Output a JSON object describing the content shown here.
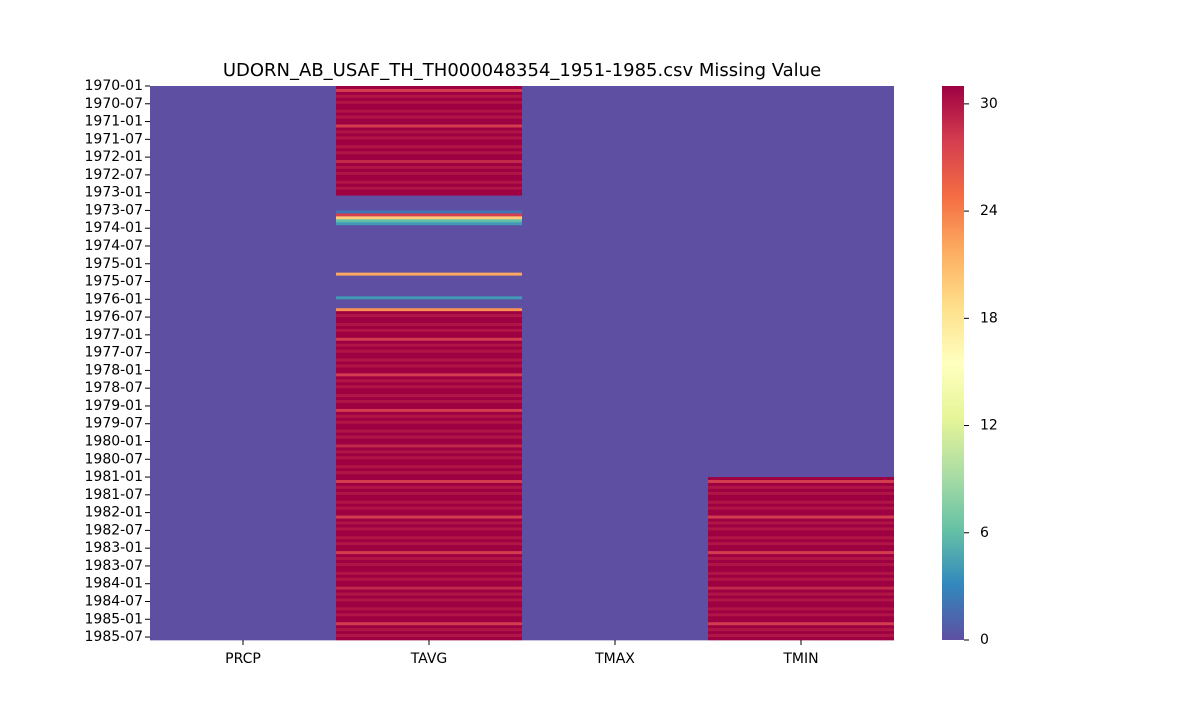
{
  "chart_data": {
    "type": "heatmap",
    "title": "UDORN_AB_USAF_TH_TH000048354_1951-1985.csv Missing Value",
    "xlabel": "",
    "ylabel": "",
    "columns": [
      "PRCP",
      "TAVG",
      "TMAX",
      "TMIN"
    ],
    "row_start": "1970-01",
    "row_end": "1985-07",
    "row_tick_labels": [
      "1970-01",
      "1970-07",
      "1971-01",
      "1971-07",
      "1972-01",
      "1972-07",
      "1973-01",
      "1973-07",
      "1974-01",
      "1974-07",
      "1975-01",
      "1975-07",
      "1976-01",
      "1976-07",
      "1977-01",
      "1977-07",
      "1978-01",
      "1978-07",
      "1979-01",
      "1979-07",
      "1980-01",
      "1980-07",
      "1981-01",
      "1981-07",
      "1982-01",
      "1982-07",
      "1983-01",
      "1983-07",
      "1984-01",
      "1984-07",
      "1985-01",
      "1985-07"
    ],
    "colorbar": {
      "colormap": "Spectral_r",
      "min": 0,
      "max": 31,
      "ticks": [
        0,
        6,
        12,
        18,
        24,
        30
      ],
      "colors": [
        "#5e4fa2",
        "#3288bd",
        "#66c2a5",
        "#abdda4",
        "#e6f598",
        "#ffffbf",
        "#fee08b",
        "#fdae61",
        "#f46d43",
        "#d53e4f",
        "#9e0142"
      ]
    },
    "series": [
      {
        "column": "PRCP",
        "segments": [
          {
            "from": "1970-01",
            "to": "1985-07",
            "value": 0
          }
        ]
      },
      {
        "column": "TAVG",
        "segments": [
          {
            "from": "1970-01",
            "to": "1973-01",
            "value": 31,
            "note": "months with 30 days shown at value 30"
          },
          {
            "from": "1973-02",
            "to": "1973-06",
            "value": 0
          },
          {
            "from": "1973-07",
            "to": "1973-07",
            "value": 2
          },
          {
            "from": "1973-08",
            "to": "1973-08",
            "value": 28
          },
          {
            "from": "1973-09",
            "to": "1973-09",
            "value": 20
          },
          {
            "from": "1973-10",
            "to": "1973-10",
            "value": 6
          },
          {
            "from": "1973-11",
            "to": "1973-11",
            "value": 4
          },
          {
            "from": "1973-12",
            "to": "1975-03",
            "value": 0
          },
          {
            "from": "1975-04",
            "to": "1975-04",
            "value": 22
          },
          {
            "from": "1975-05",
            "to": "1975-11",
            "value": 0
          },
          {
            "from": "1975-12",
            "to": "1975-12",
            "value": 4
          },
          {
            "from": "1976-01",
            "to": "1976-03",
            "value": 0
          },
          {
            "from": "1976-04",
            "to": "1976-04",
            "value": 23
          },
          {
            "from": "1976-05",
            "to": "1985-07",
            "value": 31,
            "note": "months with 30 days shown at value 30"
          }
        ]
      },
      {
        "column": "TMAX",
        "segments": [
          {
            "from": "1970-01",
            "to": "1985-07",
            "value": 0
          }
        ]
      },
      {
        "column": "TMIN",
        "segments": [
          {
            "from": "1970-01",
            "to": "1980-12",
            "value": 0
          },
          {
            "from": "1981-01",
            "to": "1985-07",
            "value": 31,
            "note": "months with 30 days shown at value 30"
          }
        ]
      }
    ]
  }
}
